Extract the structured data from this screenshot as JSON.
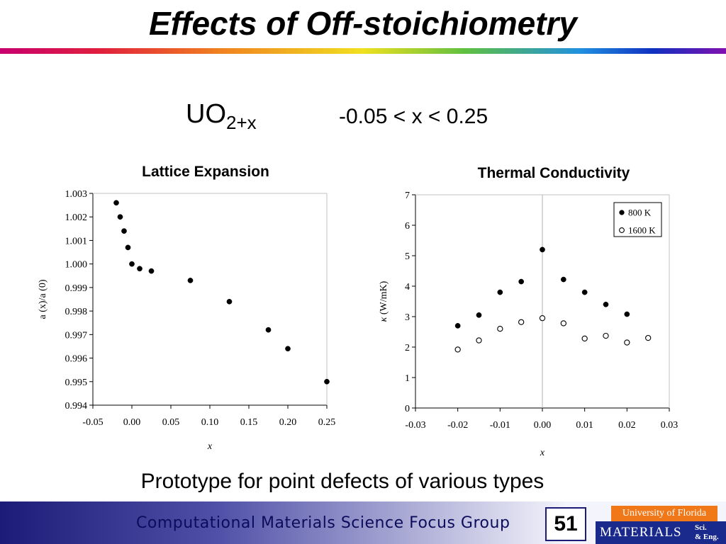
{
  "slide": {
    "title": "Effects of Off-stoichiometry",
    "formula_base": "UO",
    "formula_sub": "2+x",
    "range": "-0.05 < x < 0.25",
    "caption": "Prototype for point defects of various types",
    "page_number": "51"
  },
  "footer": {
    "group": "Computational Materials Science Focus Group",
    "logo_university": "University of Florida",
    "logo_materials": "MATERIALS",
    "logo_sci": "Sci.",
    "logo_eng": "& Eng."
  },
  "colors": {
    "footer_gradient_start": "#1c1c78",
    "logo_orange": "#f07818",
    "logo_blue": "#1a2a8c"
  },
  "chart_data": [
    {
      "type": "scatter",
      "title": "Lattice Expansion",
      "xlabel": "x",
      "ylabel_italic": "a",
      "ylabel": "a (x)/a (0)",
      "xlim": [
        -0.05,
        0.25
      ],
      "ylim": [
        0.994,
        1.003
      ],
      "xticks": [
        -0.05,
        0.0,
        0.05,
        0.1,
        0.15,
        0.2,
        0.25
      ],
      "xtick_labels": [
        "-0.05",
        "0.00",
        "0.05",
        "0.10",
        "0.15",
        "0.20",
        "0.25"
      ],
      "yticks": [
        0.994,
        0.995,
        0.996,
        0.997,
        0.998,
        0.999,
        1.0,
        1.001,
        1.002,
        1.003
      ],
      "ytick_labels": [
        "0.994",
        "0.995",
        "0.996",
        "0.997",
        "0.998",
        "0.999",
        "1.000",
        "1.001",
        "1.002",
        "1.003"
      ],
      "grid": false,
      "series": [
        {
          "marker": "filled",
          "x": [
            -0.02,
            -0.015,
            -0.01,
            -0.005,
            0.0,
            0.01,
            0.025,
            0.075,
            0.125,
            0.175,
            0.2,
            0.25
          ],
          "y": [
            1.0026,
            1.002,
            1.0014,
            1.0007,
            1.0,
            0.9998,
            0.9997,
            0.9993,
            0.9984,
            0.9972,
            0.9964,
            0.995
          ]
        }
      ]
    },
    {
      "type": "scatter",
      "title": "Thermal Conductivity",
      "xlabel": "x",
      "ylabel_symbol": "κ",
      "ylabel": "(W/mK)",
      "xlim": [
        -0.03,
        0.03
      ],
      "ylim": [
        0,
        7
      ],
      "xticks": [
        -0.03,
        -0.02,
        -0.01,
        0.0,
        0.01,
        0.02,
        0.03
      ],
      "xtick_labels": [
        "-0.03",
        "-0.02",
        "-0.01",
        "0.00",
        "0.01",
        "0.02",
        "0.03"
      ],
      "yticks": [
        0,
        1,
        2,
        3,
        4,
        5,
        6,
        7
      ],
      "ytick_labels": [
        "0",
        "1",
        "2",
        "3",
        "4",
        "5",
        "6",
        "7"
      ],
      "grid": false,
      "reference_line_x": 0.0,
      "legend_position": "top-right",
      "series": [
        {
          "name": "800 K",
          "marker": "filled",
          "x": [
            -0.02,
            -0.015,
            -0.01,
            -0.005,
            0.0,
            0.005,
            0.01,
            0.015,
            0.02
          ],
          "y": [
            2.7,
            3.05,
            3.8,
            4.15,
            5.2,
            4.22,
            3.8,
            3.4,
            3.08
          ]
        },
        {
          "name": "1600 K",
          "marker": "open",
          "x": [
            -0.02,
            -0.015,
            -0.01,
            -0.005,
            0.0,
            0.005,
            0.01,
            0.015,
            0.02,
            0.025
          ],
          "y": [
            1.92,
            2.22,
            2.6,
            2.82,
            2.95,
            2.78,
            2.28,
            2.37,
            2.15,
            2.3
          ]
        }
      ]
    }
  ]
}
